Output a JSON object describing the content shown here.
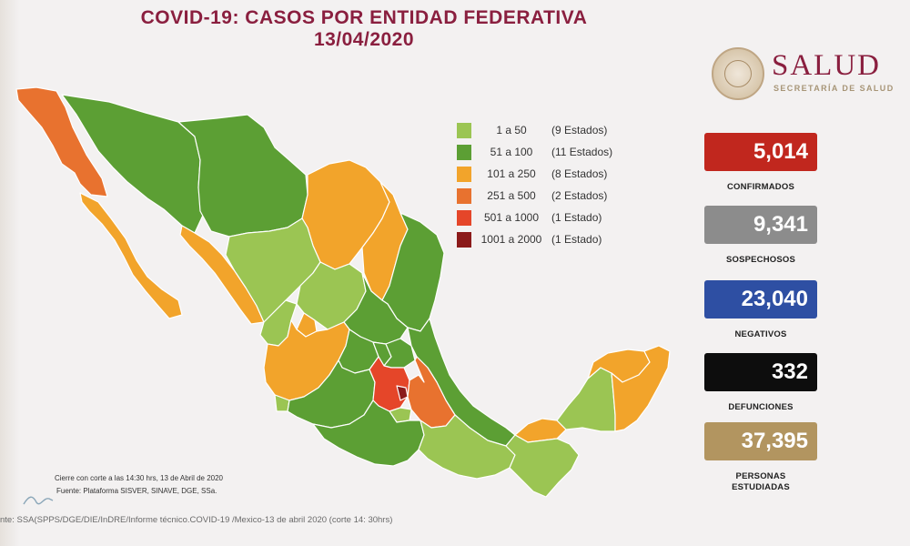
{
  "title": "COVID-19: CASOS POR ENTIDAD FEDERATIVA",
  "date": "13/04/2020",
  "logo": {
    "main": "SALUD",
    "sub": "SECRETARÍA DE SALUD"
  },
  "legend": [
    {
      "range": "1 a 50",
      "count": "(9 Estados)",
      "color": "#9bc553"
    },
    {
      "range": "51 a 100",
      "count": "(11 Estados)",
      "color": "#5c9f34"
    },
    {
      "range": "101 a 250",
      "count": "(8 Estados)",
      "color": "#f2a42b"
    },
    {
      "range": "251 a 500",
      "count": "(2 Estados)",
      "color": "#e8722f"
    },
    {
      "range": "501 a 1000",
      "count": "(1 Estado)",
      "color": "#e54629"
    },
    {
      "range": "1001 a 2000",
      "count": "(1 Estado)",
      "color": "#8b1a1a"
    }
  ],
  "stats": [
    {
      "value": "5,014",
      "label": "CONFIRMADOS",
      "color": "#c1271e"
    },
    {
      "value": "9,341",
      "label": "SOSPECHOSOS",
      "color": "#8c8c8c"
    },
    {
      "value": "23,040",
      "label": "NEGATIVOS",
      "color": "#2e4fa3"
    },
    {
      "value": "332",
      "label": "DEFUNCIONES",
      "color": "#0d0d0d"
    },
    {
      "value": "37,395",
      "label": "PERSONAS ESTUDIADAS",
      "color": "#b29560"
    }
  ],
  "notes": {
    "cierre": "Cierre con corte a las 14:30 hrs, 13 de Abril de 2020",
    "fuente": "Fuente: Plataforma SISVER, SINAVE, DGE, SSa."
  },
  "footer_source": "nte: SSA(SPPS/DGE/DIE/InDRE/Informe técnico.COVID-19 /Mexico-13 de abril 2020 (corte 14: 30hrs)",
  "colors": {
    "brand": "#8a1f3f",
    "background": "#f3f1f1"
  }
}
